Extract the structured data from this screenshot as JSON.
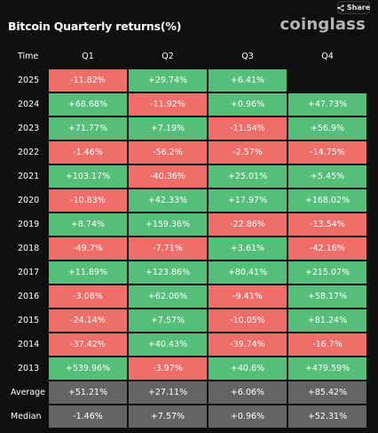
{
  "header": {
    "title": "Bitcoin Quarterly returns(%)",
    "brand": "coinglass",
    "share_label": "Share"
  },
  "table": {
    "columns": [
      "Time",
      "Q1",
      "Q2",
      "Q3",
      "Q4"
    ],
    "rows": [
      {
        "label": "2025",
        "values": [
          "-11.82%",
          "+29.74%",
          "+6.41%",
          ""
        ]
      },
      {
        "label": "2024",
        "values": [
          "+68.68%",
          "-11.92%",
          "+0.96%",
          "+47.73%"
        ]
      },
      {
        "label": "2023",
        "values": [
          "+71.77%",
          "+7.19%",
          "-11.54%",
          "+56.9%"
        ]
      },
      {
        "label": "2022",
        "values": [
          "-1.46%",
          "-56.2%",
          "-2.57%",
          "-14.75%"
        ]
      },
      {
        "label": "2021",
        "values": [
          "+103.17%",
          "-40.36%",
          "+25.01%",
          "+5.45%"
        ]
      },
      {
        "label": "2020",
        "values": [
          "-10.83%",
          "+42.33%",
          "+17.97%",
          "+168.02%"
        ]
      },
      {
        "label": "2019",
        "values": [
          "+8.74%",
          "+159.36%",
          "-22.86%",
          "-13.54%"
        ]
      },
      {
        "label": "2018",
        "values": [
          "-49.7%",
          "-7.71%",
          "+3.61%",
          "-42.16%"
        ]
      },
      {
        "label": "2017",
        "values": [
          "+11.89%",
          "+123.86%",
          "+80.41%",
          "+215.07%"
        ]
      },
      {
        "label": "2016",
        "values": [
          "-3.06%",
          "+62.06%",
          "-9.41%",
          "+58.17%"
        ]
      },
      {
        "label": "2015",
        "values": [
          "-24.14%",
          "+7.57%",
          "-10.05%",
          "+81.24%"
        ]
      },
      {
        "label": "2014",
        "values": [
          "-37.42%",
          "+40.43%",
          "-39.74%",
          "-16.7%"
        ]
      },
      {
        "label": "2013",
        "values": [
          "+539.96%",
          "-3.97%",
          "+40.6%",
          "+479.59%"
        ]
      }
    ],
    "summary": [
      {
        "label": "Average",
        "values": [
          "+51.21%",
          "+27.11%",
          "+6.06%",
          "+85.42%"
        ]
      },
      {
        "label": "Median",
        "values": [
          "-1.46%",
          "+7.57%",
          "+0.96%",
          "+52.31%"
        ]
      }
    ]
  },
  "colors": {
    "positive": "#55bf7a",
    "negative": "#ef6e6a",
    "summary": "#646464",
    "background": "#0f0f10"
  },
  "icons": {
    "share": "share-icon"
  }
}
